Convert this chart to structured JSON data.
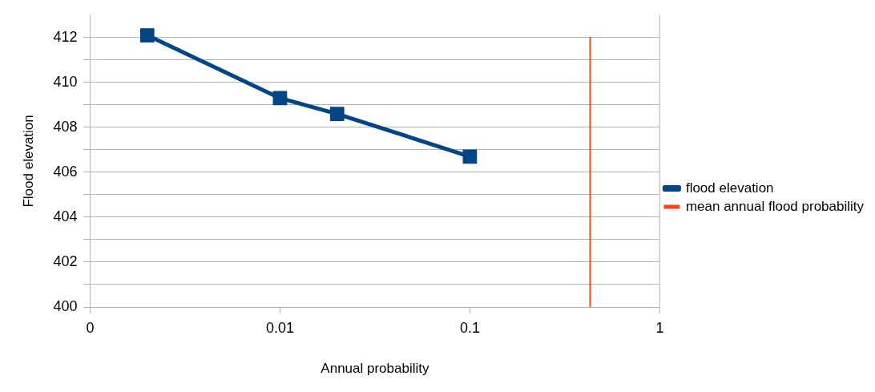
{
  "chart_data": {
    "type": "line",
    "xlabel": "Annual probability",
    "ylabel": "Flood elevation",
    "log": "x",
    "xlim": [
      0.001,
      1
    ],
    "xticks": [
      {
        "value": 0.001,
        "label": "0"
      },
      0.01,
      0.1,
      1
    ],
    "ylim": [
      400,
      413
    ],
    "yticks": [
      400,
      {
        "value": 401,
        "label": null
      },
      402,
      {
        "value": 403,
        "label": null
      },
      404,
      {
        "value": 405,
        "label": null
      },
      406,
      {
        "value": 407,
        "label": null
      },
      408,
      {
        "value": 409,
        "label": null
      },
      410,
      {
        "value": 411,
        "label": null
      },
      412
    ],
    "grid": "y",
    "legend": "right",
    "series": [
      {
        "name": "flood elevation",
        "color": "#004586",
        "marker": "square",
        "x": [
          0.002,
          0.01,
          0.02,
          0.1
        ],
        "values": [
          412.1,
          409.3,
          408.6,
          406.7
        ]
      },
      {
        "name": "mean annual flood probability",
        "color": "#ff420e",
        "marker": "none",
        "x": [
          0.43,
          0.43
        ],
        "values": [
          400,
          412
        ]
      }
    ]
  }
}
